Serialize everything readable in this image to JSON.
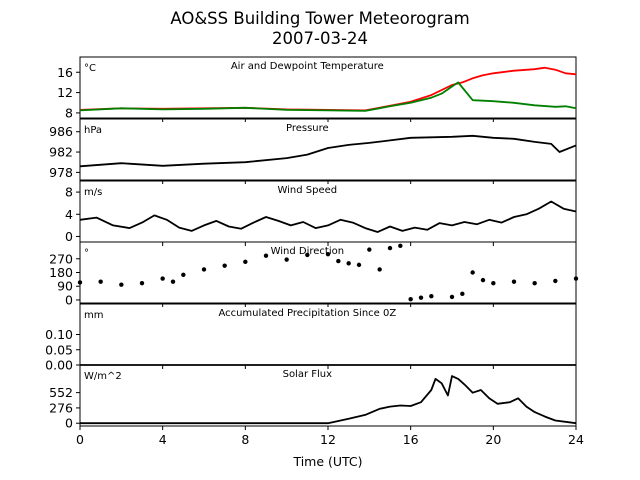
{
  "title": "AO&SS Building Tower Meteorogram",
  "subtitle": "2007-03-24",
  "colors": {
    "air_temperature": "#ff0000",
    "dewpoint": "#008000",
    "default": "#000000"
  },
  "chart_data": [
    {
      "type": "line",
      "panel_title": "Air and Dewpoint Temperature",
      "unit": "°C",
      "ylim": [
        7,
        19
      ],
      "yticks": [
        8,
        12,
        16
      ],
      "series": [
        {
          "color": "#ff0000",
          "x": [
            0,
            2,
            4,
            6,
            8,
            10,
            12,
            13.8,
            15,
            16,
            17,
            18,
            18.5,
            19,
            19.5,
            20,
            21,
            22,
            22.5,
            23,
            23.5,
            24
          ],
          "values": [
            8.6,
            8.9,
            8.8,
            8.9,
            9.0,
            8.7,
            8.6,
            8.5,
            9.4,
            10.2,
            11.5,
            13.5,
            14.0,
            14.8,
            15.4,
            15.8,
            16.3,
            16.6,
            16.9,
            16.5,
            15.8,
            15.6
          ]
        },
        {
          "color": "#008000",
          "x": [
            0,
            2,
            4,
            6,
            8,
            10,
            12,
            13.8,
            15,
            16,
            17,
            17.5,
            18,
            18.3,
            18.6,
            19,
            20,
            21,
            22,
            23,
            23.5,
            24
          ],
          "values": [
            8.5,
            8.9,
            8.7,
            8.8,
            9.0,
            8.6,
            8.5,
            8.4,
            9.3,
            10.0,
            11.0,
            11.8,
            13.2,
            14.0,
            12.5,
            10.5,
            10.3,
            10.0,
            9.5,
            9.2,
            9.3,
            8.9
          ]
        }
      ]
    },
    {
      "type": "line",
      "panel_title": "Pressure",
      "unit": "hPa",
      "ylim": [
        976.5,
        988.5
      ],
      "yticks": [
        978,
        982,
        986
      ],
      "series": [
        {
          "color": "#000000",
          "x": [
            0,
            2,
            4,
            6,
            8,
            10,
            11,
            12,
            13,
            14,
            15,
            16,
            18,
            19,
            20,
            21,
            22,
            22.8,
            23.2,
            24
          ],
          "values": [
            979.2,
            979.8,
            979.3,
            979.7,
            980.0,
            980.8,
            981.5,
            982.8,
            983.4,
            983.8,
            984.3,
            984.8,
            985.0,
            985.2,
            984.8,
            984.6,
            984.0,
            983.6,
            982.0,
            983.3
          ]
        }
      ]
    },
    {
      "type": "line",
      "panel_title": "Wind Speed",
      "unit": "m/s",
      "ylim": [
        -1,
        10
      ],
      "yticks": [
        0,
        4,
        8
      ],
      "series": [
        {
          "color": "#000000",
          "x": [
            0,
            0.8,
            1.6,
            2.4,
            3.0,
            3.6,
            4.2,
            4.8,
            5.4,
            6.0,
            6.6,
            7.2,
            7.8,
            8.4,
            9.0,
            9.6,
            10.2,
            10.8,
            11.4,
            12.0,
            12.6,
            13.2,
            13.8,
            14.4,
            15.0,
            15.6,
            16.2,
            16.8,
            17.4,
            18.0,
            18.6,
            19.2,
            19.8,
            20.4,
            21.0,
            21.6,
            22.2,
            22.8,
            23.4,
            24.0
          ],
          "values": [
            3.0,
            3.4,
            2.0,
            1.5,
            2.5,
            3.8,
            3.0,
            1.6,
            1.0,
            2.0,
            2.8,
            1.8,
            1.4,
            2.5,
            3.5,
            2.8,
            2.0,
            2.6,
            1.5,
            2.0,
            3.0,
            2.5,
            1.5,
            0.8,
            1.8,
            1.0,
            1.6,
            1.2,
            2.4,
            2.0,
            2.6,
            2.2,
            3.0,
            2.5,
            3.5,
            4.0,
            5.0,
            6.3,
            5.0,
            4.5
          ]
        }
      ]
    },
    {
      "type": "scatter",
      "panel_title": "Wind Direction",
      "unit": "°",
      "ylim": [
        -20,
        380
      ],
      "yticks": [
        0,
        90,
        180,
        270
      ],
      "series": [
        {
          "color": "#000000",
          "x": [
            0,
            1,
            2,
            3,
            4,
            4.5,
            5,
            6,
            7,
            8,
            9,
            10,
            11,
            12,
            12.5,
            13,
            13.5,
            14,
            14.5,
            15,
            15.5,
            16,
            16.5,
            17,
            18,
            18.5,
            19,
            19.5,
            20,
            21,
            22,
            23,
            24
          ],
          "values": [
            115,
            120,
            100,
            110,
            140,
            120,
            165,
            200,
            225,
            250,
            290,
            265,
            295,
            300,
            255,
            240,
            230,
            330,
            200,
            340,
            355,
            5,
            15,
            25,
            20,
            40,
            180,
            130,
            110,
            120,
            110,
            125,
            140
          ]
        }
      ]
    },
    {
      "type": "line",
      "panel_title": "Accumulated Precipitation Since 0Z",
      "unit": "mm",
      "ylim": [
        0,
        0.2
      ],
      "yticks": [
        0.0,
        0.05,
        0.1
      ],
      "ytick_labels": [
        "0.00",
        "0.05",
        "0.10"
      ],
      "series": [
        {
          "color": "#000000",
          "x": [
            0,
            24
          ],
          "values": [
            0,
            0
          ]
        }
      ]
    },
    {
      "type": "line",
      "panel_title": "Solar Flux",
      "unit": "W/m^2",
      "ylim": [
        -50,
        1050
      ],
      "yticks": [
        0,
        276,
        552
      ],
      "series": [
        {
          "color": "#000000",
          "x": [
            0,
            12,
            13,
            13.8,
            14.5,
            15,
            15.5,
            16,
            16.5,
            17,
            17.2,
            17.5,
            17.8,
            18.0,
            18.3,
            18.6,
            19.0,
            19.4,
            19.8,
            20.2,
            20.8,
            21.2,
            21.6,
            22,
            22.5,
            23,
            24
          ],
          "values": [
            0,
            0,
            80,
            150,
            260,
            300,
            320,
            310,
            380,
            600,
            800,
            720,
            500,
            850,
            800,
            700,
            550,
            600,
            450,
            350,
            380,
            450,
            300,
            200,
            120,
            50,
            0
          ]
        }
      ]
    }
  ],
  "xaxis": {
    "label": "Time (UTC)",
    "ticks": [
      0,
      4,
      8,
      12,
      16,
      20,
      24
    ],
    "xlim": [
      0,
      24
    ]
  }
}
